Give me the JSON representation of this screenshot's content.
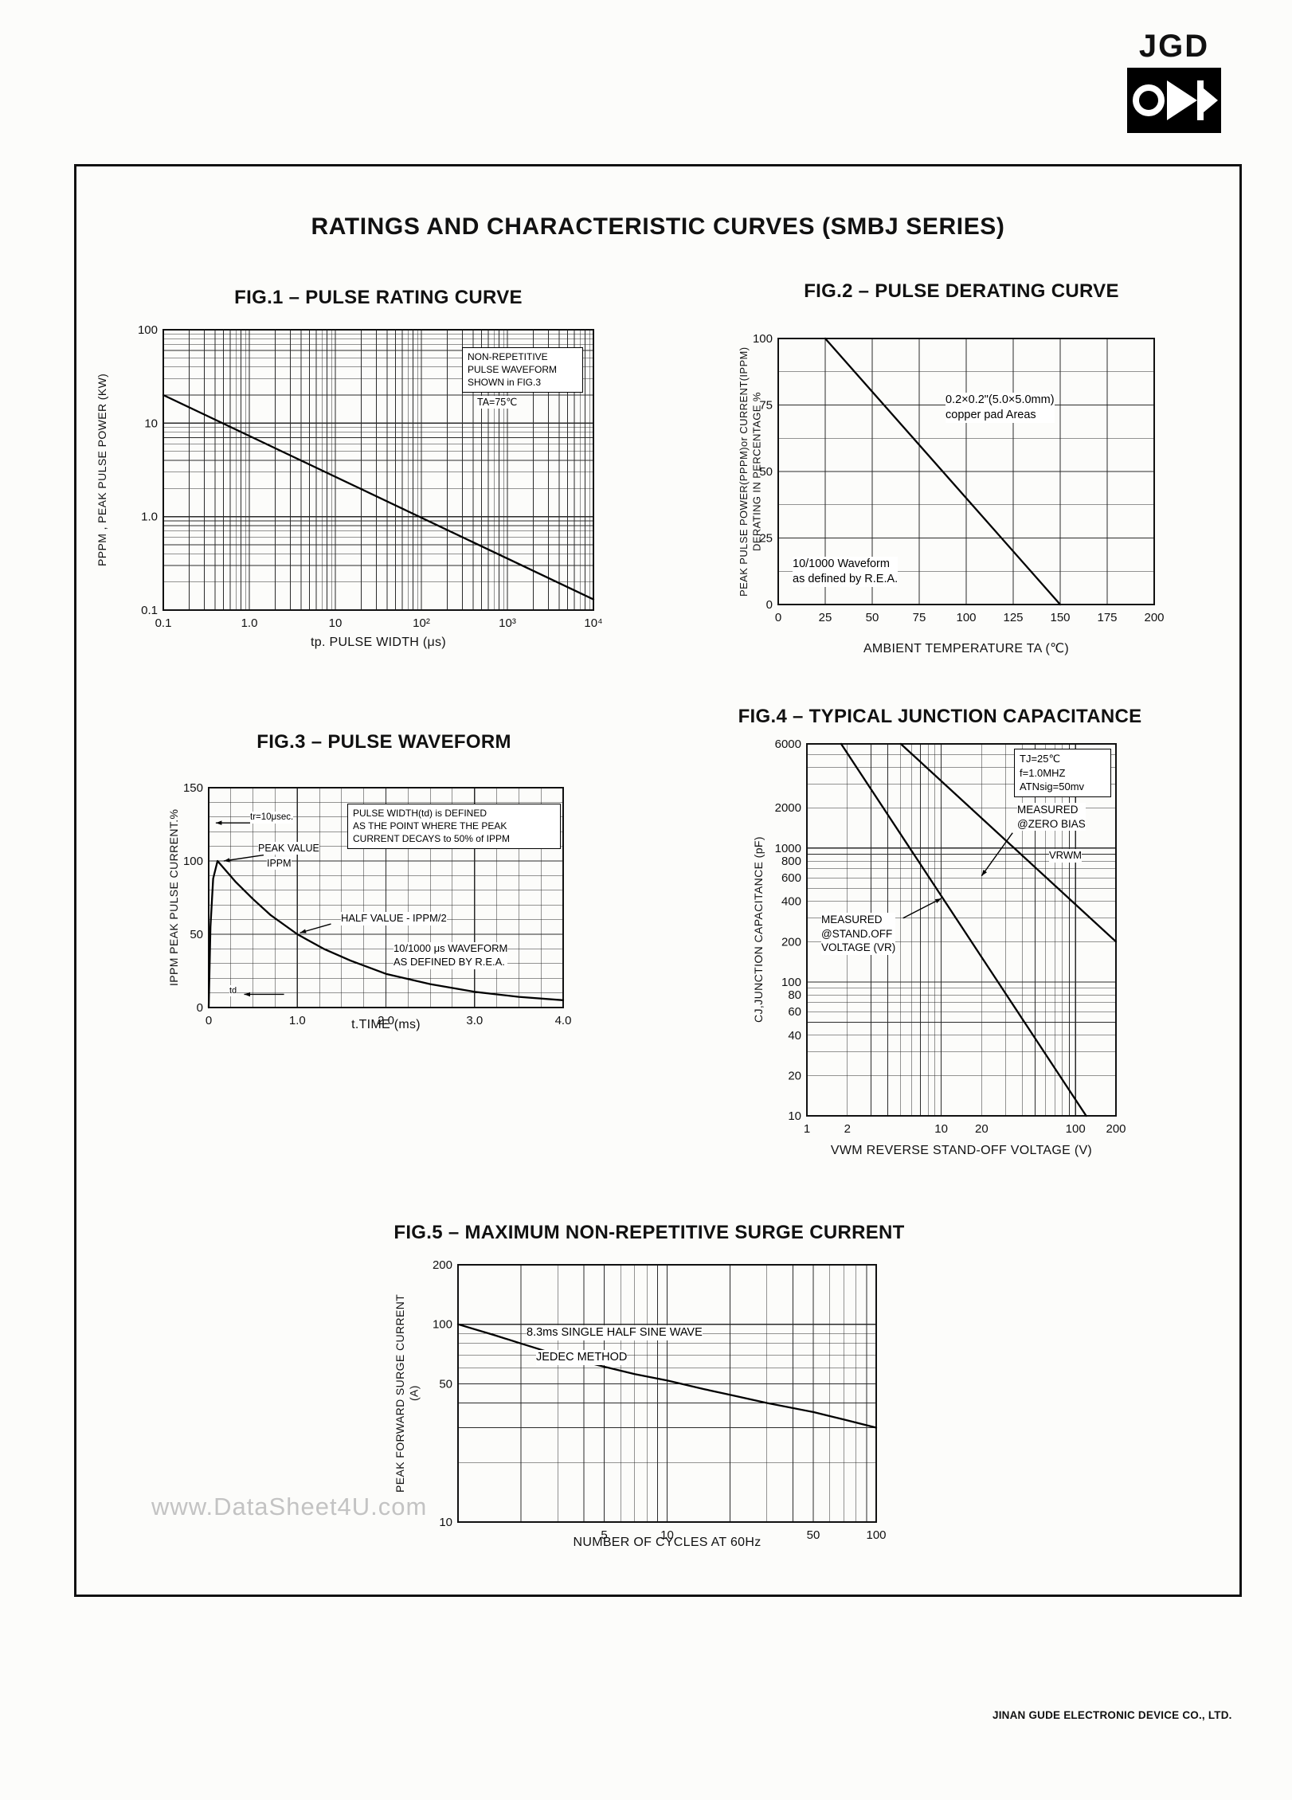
{
  "page": {
    "logo_text": "JGD",
    "main_title": "RATINGS AND CHARACTERISTIC CURVES (SMBJ SERIES)",
    "watermark": "www.DataSheet4U.com",
    "footer": "JINAN GUDE ELECTRONIC DEVICE CO., LTD."
  },
  "chart_data": [
    {
      "id": "fig1",
      "type": "line",
      "title": "FIG.1 – PULSE RATING CURVE",
      "xlabel": "tp. PULSE WIDTH (μs)",
      "ylabel": "PPPM , PEAK PULSE POWER (KW)",
      "x": {
        "scale": "log",
        "min": 0.1,
        "max": 10000,
        "ticks": [
          0.1,
          1,
          10,
          100,
          1000,
          10000
        ],
        "tick_labels": [
          "0.1",
          "1.0",
          "10",
          "10²",
          "10³",
          "10⁴"
        ]
      },
      "y": {
        "scale": "log",
        "min": 0.1,
        "max": 100,
        "ticks": [
          100,
          10,
          1,
          0.1
        ],
        "tick_labels": [
          "100",
          "10",
          "1.0",
          "0.1"
        ]
      },
      "series": [
        {
          "name": "peak pulse power",
          "points": [
            [
              0.1,
              20
            ],
            [
              10000,
              0.13
            ]
          ]
        }
      ],
      "notes": {
        "waveform": "NON-REPETITIVE\nPULSE WAVEFORM\nSHOWN in FIG.3",
        "ta": "TA=75℃"
      }
    },
    {
      "id": "fig2",
      "type": "line",
      "title": "FIG.2 – PULSE DERATING CURVE",
      "xlabel": "AMBIENT TEMPERATURE TA (℃)",
      "ylabel_lines": [
        "PEAK PULSE POWER(PPPM)or CURRENT(IPPM)",
        "DERATING IN PERCENTAGE %"
      ],
      "x": {
        "scale": "linear",
        "min": 0,
        "max": 200,
        "grid": 25,
        "ticks": [
          0,
          25,
          50,
          75,
          100,
          125,
          150,
          175,
          200
        ]
      },
      "y": {
        "scale": "linear",
        "min": 0,
        "max": 100,
        "grid": 12.5,
        "ticks": [
          0,
          25,
          50,
          75,
          100
        ]
      },
      "series": [
        {
          "name": "derating",
          "points": [
            [
              25,
              100
            ],
            [
              150,
              0
            ]
          ]
        }
      ],
      "notes": {
        "pad": "0.2×0.2\"(5.0×5.0mm)\ncopper pad Areas",
        "waveform": "10/1000 Waveform\nas defined by R.E.A."
      }
    },
    {
      "id": "fig3",
      "type": "line",
      "title": "FIG.3 – PULSE WAVEFORM",
      "xlabel": "t.TIME (ms)",
      "ylabel": "IPPM PEAK PULSE CURRENT.%",
      "x": {
        "scale": "linear",
        "min": 0,
        "max": 4,
        "grid": 0.25,
        "ticks": [
          0,
          1,
          2,
          3,
          4
        ],
        "tick_labels": [
          "0",
          "1.0",
          "2.0",
          "3.0",
          "4.0"
        ]
      },
      "y": {
        "scale": "linear",
        "min": 0,
        "max": 150,
        "grid": 10,
        "ticks": [
          0,
          50,
          100,
          150
        ]
      },
      "series": [
        {
          "name": "10/1000us pulse waveform",
          "points": [
            [
              0,
              0
            ],
            [
              0.02,
              55
            ],
            [
              0.05,
              88
            ],
            [
              0.1,
              100
            ],
            [
              0.3,
              86
            ],
            [
              0.5,
              74
            ],
            [
              0.7,
              63
            ],
            [
              1,
              50
            ],
            [
              1.3,
              40
            ],
            [
              1.6,
              32
            ],
            [
              2,
              23
            ],
            [
              2.5,
              16
            ],
            [
              3,
              10.7
            ],
            [
              3.5,
              7.3
            ],
            [
              4,
              5
            ]
          ]
        }
      ],
      "arrows": [
        {
          "from": [
            0.62,
            104
          ],
          "to": [
            0.17,
            100
          ]
        },
        {
          "from": [
            1.38,
            57
          ],
          "to": [
            1.03,
            51
          ]
        },
        {
          "from": [
            0.5,
            126
          ],
          "to": [
            0.08,
            126
          ]
        },
        {
          "from": [
            0.85,
            9
          ],
          "to": [
            0.4,
            9
          ]
        }
      ],
      "notes": {
        "tr": "tr=10μsec.",
        "peak": "PEAK VALUE",
        "ippm": "IPPM",
        "width_box": "PULSE WIDTH(td) is DEFINED\nAS THE POINT WHERE THE PEAK\nCURRENT DECAYS to 50% of IPPM",
        "half": "HALF VALUE - IPPM/2",
        "rea": "10/1000 μs  WAVEFORM\nAS DEFINED BY R.E.A.",
        "td": "td"
      }
    },
    {
      "id": "fig4",
      "type": "line",
      "title": "FIG.4 – TYPICAL JUNCTION CAPACITANCE",
      "xlabel": "VWM REVERSE STAND-OFF VOLTAGE (V)",
      "ylabel": "CJ,JUNCTION CAPACITANCE (pF)",
      "x": {
        "scale": "log",
        "min": 1,
        "max": 200,
        "ticks": [
          1,
          2,
          10,
          20,
          100,
          200
        ],
        "tick_labels": [
          "1",
          "2",
          "10",
          "20",
          "100",
          "200"
        ]
      },
      "y": {
        "scale": "log",
        "min": 10,
        "max": 6000,
        "ticks": [
          10,
          20,
          40,
          60,
          80,
          100,
          200,
          400,
          600,
          800,
          1000,
          2000,
          6000
        ],
        "tick_labels": [
          "10",
          "20",
          "40",
          "60",
          "80",
          "100",
          "200",
          "400",
          "600",
          "800",
          "1000",
          "2000",
          "6000"
        ]
      },
      "series": [
        {
          "name": "measured @ zero bias",
          "points": [
            [
              5,
              6000
            ],
            [
              200,
              200
            ]
          ]
        },
        {
          "name": "measured @ stand-off voltage",
          "points": [
            [
              1.8,
              6000
            ],
            [
              120,
              10
            ]
          ]
        }
      ],
      "arrows": [
        {
          "from": [
            5.2,
            300
          ],
          "to": [
            10,
            420
          ]
        },
        {
          "from": [
            34,
            1300
          ],
          "to": [
            20,
            620
          ]
        }
      ],
      "notes": {
        "cond": "TJ=25℃\nf=1.0MHZ\nATNsig=50mv",
        "zero": "MEASURED\n@ZERO BIAS",
        "vrwm": "VRWM",
        "standoff": "MEASURED\n@STAND.OFF\nVOLTAGE (VR)"
      }
    },
    {
      "id": "fig5",
      "type": "line",
      "title": "FIG.5 – MAXIMUM NON-REPETITIVE SURGE CURRENT",
      "xlabel": "NUMBER OF CYCLES AT 60Hz",
      "ylabel_lines": [
        "PEAK FORWARD SURGE CURRENT",
        "(A)"
      ],
      "x": {
        "scale": "log",
        "min": 1,
        "max": 100,
        "ticks": [
          5,
          10,
          50,
          100
        ],
        "tick_labels": [
          "5",
          "10",
          "50",
          "100"
        ]
      },
      "y": {
        "scale": "log",
        "min": 10,
        "max": 200,
        "ticks": [
          10,
          50,
          100,
          200
        ],
        "tick_labels": [
          "10",
          "50",
          "100",
          "200"
        ]
      },
      "series": [
        {
          "name": "surge current",
          "points": [
            [
              1,
              100
            ],
            [
              1.5,
              88
            ],
            [
              2,
              80
            ],
            [
              3,
              70
            ],
            [
              5,
              61
            ],
            [
              7,
              56
            ],
            [
              10,
              52
            ],
            [
              15,
              47
            ],
            [
              20,
              44
            ],
            [
              30,
              40
            ],
            [
              50,
              36
            ],
            [
              70,
              33
            ],
            [
              100,
              30
            ]
          ]
        }
      ],
      "notes": {
        "wave": "8.3ms SINGLE HALF SINE WAVE",
        "jedec": "JEDEC METHOD"
      }
    }
  ]
}
